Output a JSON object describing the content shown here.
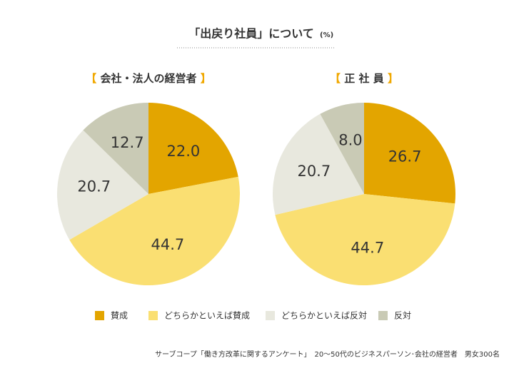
{
  "title": "「出戻り社員」について",
  "unit": "(%)",
  "source": "サーブコープ「働き方改革に関するアンケート」　20～50代のビジネスパーソン･会社の経営者　男女300名",
  "legend": [
    "賛成",
    "どちらかといえば賛成",
    "どちらかといえば反対",
    "反対"
  ],
  "chart_data": [
    {
      "type": "pie",
      "title": "【 会社・法人の経営者 】",
      "categories": [
        "賛成",
        "どちらかといえば賛成",
        "どちらかといえば反対",
        "反対"
      ],
      "values": [
        22,
        44.7,
        20.7,
        12.7
      ],
      "value_labels": [
        "22.0",
        "44.7",
        "20.7",
        "12.7"
      ],
      "colors": [
        "#e3a500",
        "#fadf72",
        "#e8e8de",
        "#c9cab5"
      ]
    },
    {
      "type": "pie",
      "title": "【 正 社 員 】",
      "categories": [
        "賛成",
        "どちらかといえば賛成",
        "どちらかといえば反対",
        "反対"
      ],
      "values": [
        26.7,
        44.7,
        20.7,
        8
      ],
      "value_labels": [
        "26.7",
        "44.7",
        "20.7",
        "8.0"
      ],
      "colors": [
        "#e3a500",
        "#fadf72",
        "#e8e8de",
        "#c9cab5"
      ]
    }
  ]
}
